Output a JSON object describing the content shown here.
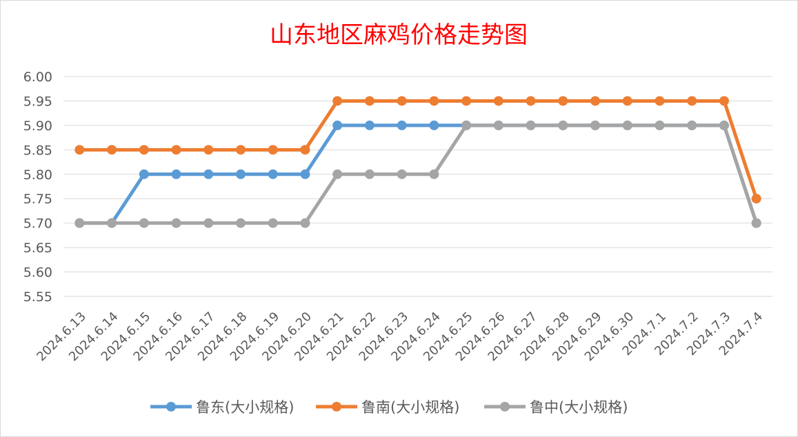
{
  "chart_data": {
    "type": "line",
    "title": "山东地区麻鸡价格走势图",
    "xlabel": "",
    "ylabel": "",
    "ylim": [
      5.55,
      6.0
    ],
    "y_ticks": [
      "6.00",
      "5.95",
      "5.90",
      "5.85",
      "5.80",
      "5.75",
      "5.70",
      "5.65",
      "5.60",
      "5.55"
    ],
    "grid": true,
    "legend_position": "bottom",
    "categories": [
      "2024.6.13",
      "2024.6.14",
      "2024.6.15",
      "2024.6.16",
      "2024.6.17",
      "2024.6.18",
      "2024.6.19",
      "2024.6.20",
      "2024.6.21",
      "2024.6.22",
      "2024.6.23",
      "2024.6.24",
      "2024.6.25",
      "2024.6.26",
      "2024.6.27",
      "2024.6.28",
      "2024.6.29",
      "2024.6.30",
      "2024.7.1",
      "2024.7.2",
      "2024.7.3",
      "2024.7.4"
    ],
    "series": [
      {
        "name": "鲁东(大小规格)",
        "color": "#5B9BD5",
        "values": [
          5.7,
          5.7,
          5.8,
          5.8,
          5.8,
          5.8,
          5.8,
          5.8,
          5.9,
          5.9,
          5.9,
          5.9,
          5.9,
          5.9,
          5.9,
          5.9,
          5.9,
          5.9,
          5.9,
          5.9,
          5.9,
          5.7
        ]
      },
      {
        "name": "鲁南(大小规格)",
        "color": "#ED7D31",
        "values": [
          5.85,
          5.85,
          5.85,
          5.85,
          5.85,
          5.85,
          5.85,
          5.85,
          5.95,
          5.95,
          5.95,
          5.95,
          5.95,
          5.95,
          5.95,
          5.95,
          5.95,
          5.95,
          5.95,
          5.95,
          5.95,
          5.75
        ]
      },
      {
        "name": "鲁中(大小规格)",
        "color": "#A5A5A5",
        "values": [
          5.7,
          5.7,
          5.7,
          5.7,
          5.7,
          5.7,
          5.7,
          5.7,
          5.8,
          5.8,
          5.8,
          5.8,
          5.9,
          5.9,
          5.9,
          5.9,
          5.9,
          5.9,
          5.9,
          5.9,
          5.9,
          5.7
        ]
      }
    ],
    "title_color": "#FF0000",
    "grid_color": "#D9D9D9",
    "text_color": "#595959"
  }
}
